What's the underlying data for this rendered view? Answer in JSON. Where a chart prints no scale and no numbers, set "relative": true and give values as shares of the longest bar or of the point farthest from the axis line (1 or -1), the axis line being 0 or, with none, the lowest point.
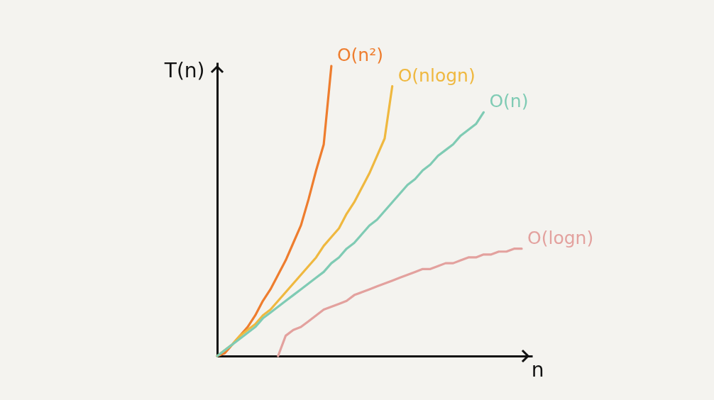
{
  "chart_data": {
    "type": "line",
    "relative": true,
    "xlabel": "n",
    "ylabel": "T(n)",
    "tick_labels": false,
    "legend": false,
    "grid": false,
    "categories": [
      null,
      null,
      null,
      null,
      null,
      null,
      null,
      null,
      null,
      null,
      null,
      null,
      null,
      null,
      null,
      null,
      null,
      null,
      null,
      null,
      null,
      null,
      null,
      null,
      null,
      null,
      null,
      null,
      null,
      null,
      null,
      null,
      null,
      null,
      null,
      null,
      null,
      null,
      null,
      null,
      null
    ],
    "series": [
      {
        "name": "O(n²)",
        "color": "#ee7d2e",
        "values": [
          0,
          0.01,
          0.04,
          0.07,
          0.1,
          0.14,
          0.19,
          0.23,
          0.28,
          0.33,
          0.39,
          0.45,
          0.54,
          0.64,
          0.73,
          1.0,
          null,
          null,
          null,
          null,
          null,
          null,
          null,
          null,
          null,
          null,
          null,
          null,
          null,
          null,
          null,
          null,
          null,
          null,
          null,
          null,
          null,
          null,
          null,
          null,
          null
        ]
      },
      {
        "name": "O(nlogn)",
        "color": "#efb83f",
        "values": [
          0,
          0.02,
          0.04,
          0.07,
          0.09,
          0.11,
          0.14,
          0.16,
          0.19,
          0.22,
          0.25,
          0.28,
          0.31,
          0.34,
          0.38,
          0.41,
          0.44,
          0.49,
          0.53,
          0.58,
          0.63,
          0.69,
          0.75,
          0.93,
          null,
          null,
          null,
          null,
          null,
          null,
          null,
          null,
          null,
          null,
          null,
          null,
          null,
          null,
          null,
          null,
          null
        ]
      },
      {
        "name": "O(n)",
        "color": "#7fcbb4",
        "values": [
          0,
          0.02,
          0.04,
          0.06,
          0.08,
          0.1,
          0.13,
          0.15,
          0.17,
          0.19,
          0.21,
          0.23,
          0.25,
          0.27,
          0.29,
          0.32,
          0.34,
          0.37,
          0.39,
          0.42,
          0.45,
          0.47,
          0.5,
          0.53,
          0.56,
          0.59,
          0.61,
          0.64,
          0.66,
          0.69,
          0.71,
          0.73,
          0.76,
          0.78,
          0.8,
          0.84,
          null,
          null,
          null,
          null,
          null
        ]
      },
      {
        "name": "O(logn)",
        "color": "#e3a19e",
        "values": [
          null,
          null,
          null,
          null,
          null,
          null,
          null,
          null,
          0,
          0.07,
          0.09,
          0.1,
          0.12,
          0.14,
          0.16,
          0.17,
          0.18,
          0.19,
          0.21,
          0.22,
          0.23,
          0.24,
          0.25,
          0.26,
          0.27,
          0.28,
          0.29,
          0.3,
          0.3,
          0.31,
          0.32,
          0.32,
          0.33,
          0.34,
          0.34,
          0.35,
          0.35,
          0.36,
          0.36,
          0.37,
          0.37
        ]
      }
    ]
  }
}
